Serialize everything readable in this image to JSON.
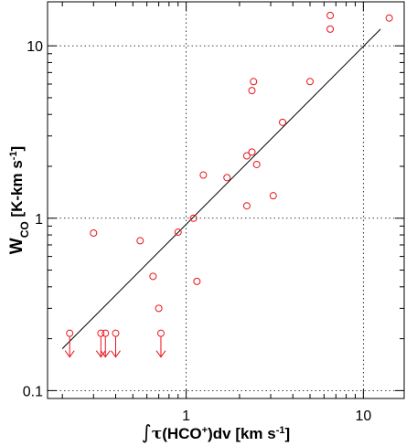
{
  "chart_data": {
    "type": "scatter",
    "title": "",
    "xlabel_parts": {
      "integral": "∫",
      "tau": "τ",
      "mol": "(HCO",
      "sup": "+",
      "rest": ")dv [km s",
      "unit_sup": "-1",
      "close": "]"
    },
    "ylabel_parts": {
      "w": "W",
      "sub": "CO",
      "unit": " [K-km s",
      "unit_sup": "-1",
      "close": "]"
    },
    "x_scale": "log",
    "y_scale": "log",
    "xlim": [
      0.165,
      17
    ],
    "ylim": [
      0.09,
      18
    ],
    "x_ticks": [
      {
        "value": 1,
        "label": "1"
      },
      {
        "value": 10,
        "label": "10"
      }
    ],
    "y_ticks": [
      {
        "value": 0.1,
        "label": "0.1"
      },
      {
        "value": 1,
        "label": "1"
      },
      {
        "value": 10,
        "label": "10"
      }
    ],
    "grid": true,
    "marker_color": "#e8141c",
    "line_color": "#000000",
    "points": [
      {
        "x": 0.3,
        "y": 0.82
      },
      {
        "x": 0.55,
        "y": 0.74
      },
      {
        "x": 0.9,
        "y": 0.83
      },
      {
        "x": 1.1,
        "y": 1.0
      },
      {
        "x": 0.65,
        "y": 0.46
      },
      {
        "x": 0.7,
        "y": 0.3
      },
      {
        "x": 1.15,
        "y": 0.43
      },
      {
        "x": 1.25,
        "y": 1.78
      },
      {
        "x": 1.7,
        "y": 1.72
      },
      {
        "x": 2.2,
        "y": 1.18
      },
      {
        "x": 2.2,
        "y": 2.3
      },
      {
        "x": 2.35,
        "y": 2.42
      },
      {
        "x": 2.5,
        "y": 2.05
      },
      {
        "x": 2.35,
        "y": 5.5
      },
      {
        "x": 2.4,
        "y": 6.2
      },
      {
        "x": 3.1,
        "y": 1.35
      },
      {
        "x": 3.5,
        "y": 3.6
      },
      {
        "x": 5.0,
        "y": 6.2
      },
      {
        "x": 6.5,
        "y": 15.0
      },
      {
        "x": 6.5,
        "y": 12.5
      },
      {
        "x": 14.0,
        "y": 14.5
      }
    ],
    "upper_limits": [
      {
        "x": 0.22,
        "y": 0.215
      },
      {
        "x": 0.33,
        "y": 0.215
      },
      {
        "x": 0.35,
        "y": 0.215
      },
      {
        "x": 0.4,
        "y": 0.215
      },
      {
        "x": 0.72,
        "y": 0.215
      }
    ],
    "fit_line": {
      "x": [
        0.2,
        12.5
      ],
      "y": [
        0.175,
        12.5
      ]
    }
  }
}
